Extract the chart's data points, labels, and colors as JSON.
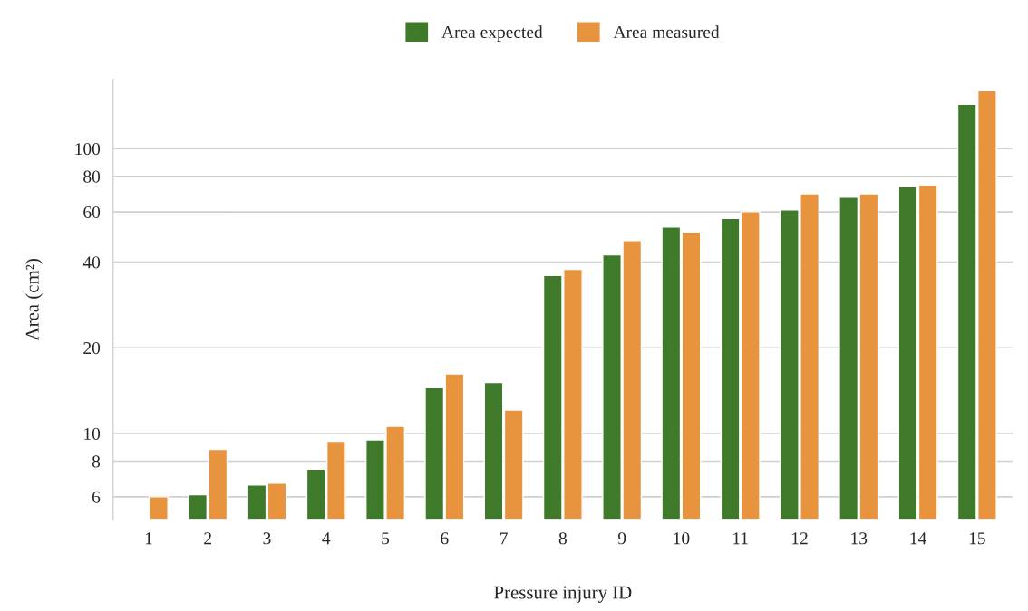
{
  "chart_data": {
    "type": "bar",
    "xlabel": "Pressure injury ID",
    "ylabel": "Area (cm²)",
    "categories": [
      "1",
      "2",
      "3",
      "4",
      "5",
      "6",
      "7",
      "8",
      "9",
      "10",
      "11",
      "12",
      "13",
      "14",
      "15"
    ],
    "series": [
      {
        "name": "Area expected",
        "color": "#3f7a2a",
        "values": [
          null,
          6.1,
          6.6,
          7.5,
          9.5,
          14.5,
          15.1,
          35.9,
          42.4,
          53.1,
          56.9,
          61.0,
          67.6,
          73.5,
          143
        ]
      },
      {
        "name": "Area measured",
        "color": "#e8943f",
        "values": [
          6.0,
          8.8,
          6.7,
          9.4,
          10.6,
          16.2,
          12.1,
          37.7,
          47.6,
          51.0,
          60.1,
          69.5,
          69.5,
          74.5,
          160
        ]
      }
    ],
    "log": "y",
    "ylim": [
      5,
      175
    ],
    "yticks": [
      6,
      8,
      10,
      20,
      40,
      60,
      80,
      100
    ],
    "grid": "y",
    "legend": "top"
  }
}
